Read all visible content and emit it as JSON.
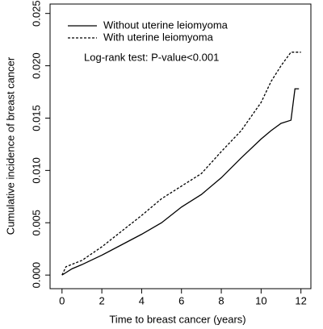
{
  "chart_data": {
    "type": "line",
    "xlabel": "Time to breast cancer (years)",
    "ylabel": "Cumulative incidence of breast cancer",
    "annotation": "Log-rank test: P-value<0.001",
    "xlim": [
      -0.6,
      12.5
    ],
    "ylim": [
      -0.0013,
      0.0259
    ],
    "xticks": [
      0,
      2,
      4,
      6,
      8,
      10,
      12
    ],
    "yticks": [
      {
        "value": 0,
        "label": "0.000"
      },
      0.005,
      {
        "value": 0.01,
        "label": "0.010"
      },
      0.015,
      {
        "value": 0.02,
        "label": "0.020"
      },
      0.025
    ],
    "legend": "top-left",
    "series": [
      {
        "name": "Without uterine leiomyoma",
        "color": "#000000",
        "linestyle": "solid",
        "x": [
          0,
          0.5,
          1,
          2,
          3,
          4,
          5,
          6,
          7,
          8,
          9,
          10,
          10.5,
          11,
          11.5,
          11.6,
          11.7,
          11.9
        ],
        "values": [
          0,
          0.0006,
          0.001,
          0.0019,
          0.0029,
          0.0039,
          0.005,
          0.0065,
          0.0077,
          0.0093,
          0.0112,
          0.013,
          0.0138,
          0.0145,
          0.0148,
          0.0163,
          0.0178,
          0.0178
        ]
      },
      {
        "name": "With uterine leiomyoma",
        "color": "#000000",
        "linestyle": "dashed",
        "x": [
          0,
          0.2,
          1,
          2,
          3,
          4,
          5,
          6,
          7,
          8,
          9,
          10,
          10.5,
          11,
          11.5,
          12
        ],
        "values": [
          0,
          0.0008,
          0.0014,
          0.0027,
          0.0042,
          0.0057,
          0.0073,
          0.0085,
          0.0097,
          0.0118,
          0.0138,
          0.0165,
          0.0185,
          0.02,
          0.0213,
          0.0213
        ]
      }
    ]
  }
}
